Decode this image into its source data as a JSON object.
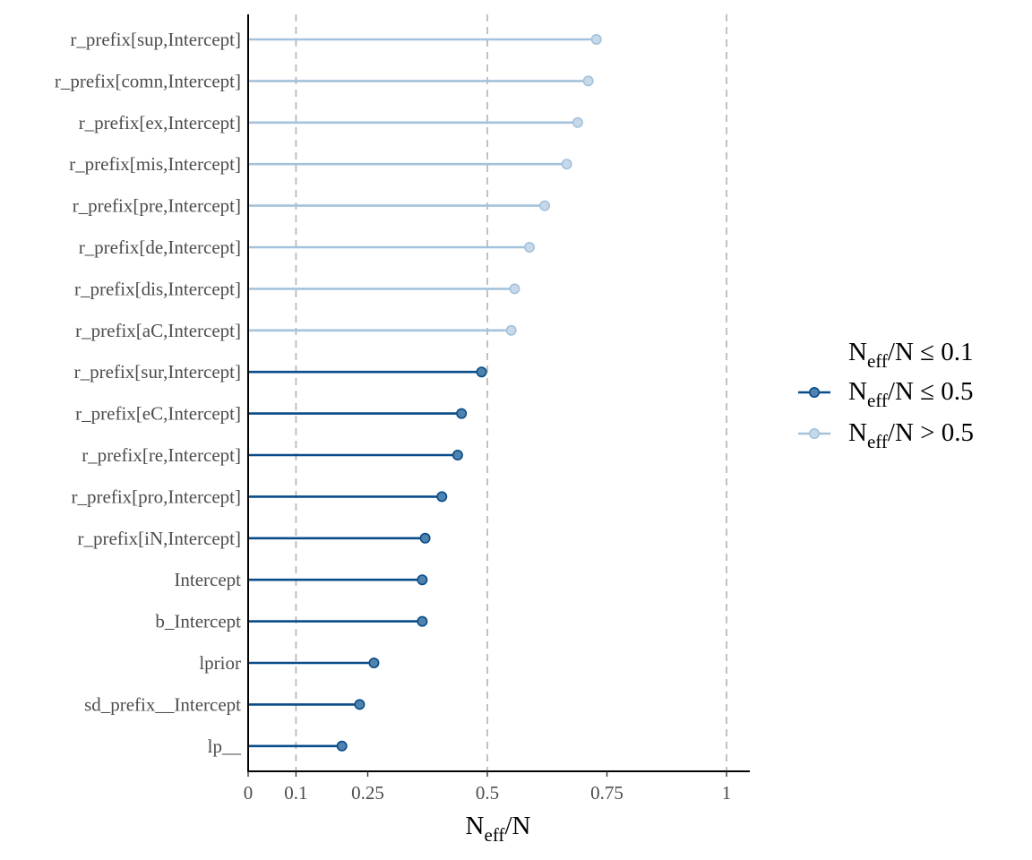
{
  "chart_data": {
    "type": "lollipop",
    "xlabel_main": "N",
    "xlabel_sub": "eff",
    "xlabel_tail": "/N",
    "xlim": [
      0,
      1
    ],
    "x_ticks": [
      0,
      0.1,
      0.25,
      0.5,
      0.75,
      1
    ],
    "x_tick_labels": [
      "0",
      "0.1",
      "0.25",
      "0.5",
      "0.75",
      "1"
    ],
    "reference_lines": [
      0.1,
      0.5,
      1
    ],
    "grid": false,
    "legend_position": "right",
    "legend": [
      {
        "main": "N",
        "sub": "eff",
        "tail": "/N ≤ 0.1",
        "color": "#d6604d",
        "show_marker": false
      },
      {
        "main": "N",
        "sub": "eff",
        "tail": "/N ≤ 0.5",
        "color": "#084c89",
        "fill": "#4f83ad",
        "show_marker": true
      },
      {
        "main": "N",
        "sub": "eff",
        "tail": "/N > 0.5",
        "color": "#a4c2db",
        "fill": "#c6d9ea",
        "show_marker": true
      }
    ],
    "parameters": [
      {
        "label": "r_prefix[sup,Intercept]",
        "value": 0.728,
        "group": 2
      },
      {
        "label": "r_prefix[comn,Intercept]",
        "value": 0.711,
        "group": 2
      },
      {
        "label": "r_prefix[ex,Intercept]",
        "value": 0.689,
        "group": 2
      },
      {
        "label": "r_prefix[mis,Intercept]",
        "value": 0.666,
        "group": 2
      },
      {
        "label": "r_prefix[pre,Intercept]",
        "value": 0.62,
        "group": 2
      },
      {
        "label": "r_prefix[de,Intercept]",
        "value": 0.588,
        "group": 2
      },
      {
        "label": "r_prefix[dis,Intercept]",
        "value": 0.557,
        "group": 2
      },
      {
        "label": "r_prefix[aC,Intercept]",
        "value": 0.55,
        "group": 2
      },
      {
        "label": "r_prefix[sur,Intercept]",
        "value": 0.488,
        "group": 1
      },
      {
        "label": "r_prefix[eC,Intercept]",
        "value": 0.446,
        "group": 1
      },
      {
        "label": "r_prefix[re,Intercept]",
        "value": 0.438,
        "group": 1
      },
      {
        "label": "r_prefix[pro,Intercept]",
        "value": 0.405,
        "group": 1
      },
      {
        "label": "r_prefix[iN,Intercept]",
        "value": 0.37,
        "group": 1
      },
      {
        "label": "Intercept",
        "value": 0.364,
        "group": 1
      },
      {
        "label": "b_Intercept",
        "value": 0.364,
        "group": 1
      },
      {
        "label": "lprior",
        "value": 0.263,
        "group": 1
      },
      {
        "label": "sd_prefix__Intercept",
        "value": 0.233,
        "group": 1
      },
      {
        "label": "lp__",
        "value": 0.196,
        "group": 1
      }
    ]
  }
}
